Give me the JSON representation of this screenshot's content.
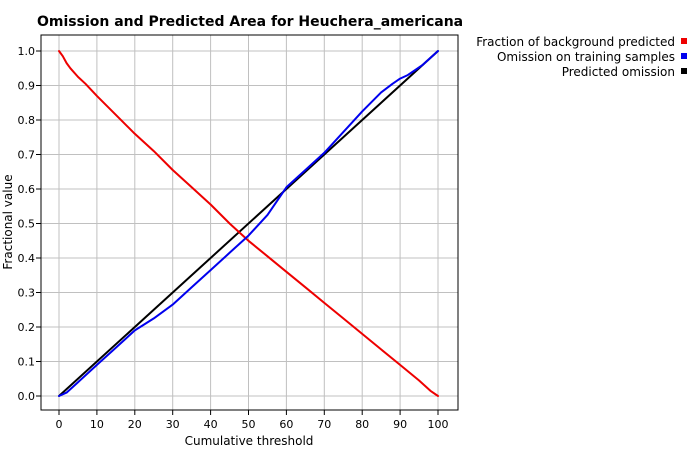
{
  "chart_data": {
    "type": "line",
    "title": "Omission and Predicted Area for Heuchera_americana",
    "xlabel": "Cumulative threshold",
    "ylabel": "Fractional value",
    "xlim": [
      0,
      100
    ],
    "ylim": [
      0,
      1
    ],
    "xticks": [
      "0",
      "10",
      "20",
      "30",
      "40",
      "50",
      "60",
      "70",
      "80",
      "90",
      "100"
    ],
    "yticks": [
      "0.0",
      "0.1",
      "0.2",
      "0.3",
      "0.4",
      "0.5",
      "0.6",
      "0.7",
      "0.8",
      "0.9",
      "1.0"
    ],
    "grid": true,
    "legend_position": "top-right",
    "series": [
      {
        "name": "Fraction of background predicted",
        "color": "#ee0000",
        "x": [
          0,
          1,
          2,
          3,
          5,
          7,
          10,
          15,
          20,
          25,
          30,
          35,
          40,
          45,
          50,
          55,
          60,
          65,
          70,
          75,
          80,
          85,
          90,
          95,
          98,
          100
        ],
        "y": [
          1.0,
          0.985,
          0.965,
          0.95,
          0.925,
          0.905,
          0.87,
          0.815,
          0.76,
          0.71,
          0.655,
          0.605,
          0.555,
          0.5,
          0.45,
          0.405,
          0.36,
          0.315,
          0.27,
          0.225,
          0.18,
          0.135,
          0.09,
          0.045,
          0.015,
          0.0
        ]
      },
      {
        "name": "Omission on training samples",
        "color": "#0000ee",
        "x": [
          0,
          2,
          5,
          10,
          15,
          20,
          25,
          30,
          35,
          40,
          45,
          50,
          55,
          60,
          65,
          70,
          75,
          80,
          85,
          88,
          90,
          92,
          94,
          96,
          98,
          100
        ],
        "y": [
          0.0,
          0.01,
          0.04,
          0.09,
          0.14,
          0.19,
          0.225,
          0.265,
          0.315,
          0.365,
          0.415,
          0.465,
          0.525,
          0.605,
          0.655,
          0.705,
          0.765,
          0.825,
          0.88,
          0.905,
          0.92,
          0.93,
          0.945,
          0.96,
          0.98,
          1.0
        ]
      },
      {
        "name": "Predicted omission",
        "color": "#000000",
        "x": [
          0,
          100
        ],
        "y": [
          0.0,
          1.0
        ]
      }
    ]
  }
}
